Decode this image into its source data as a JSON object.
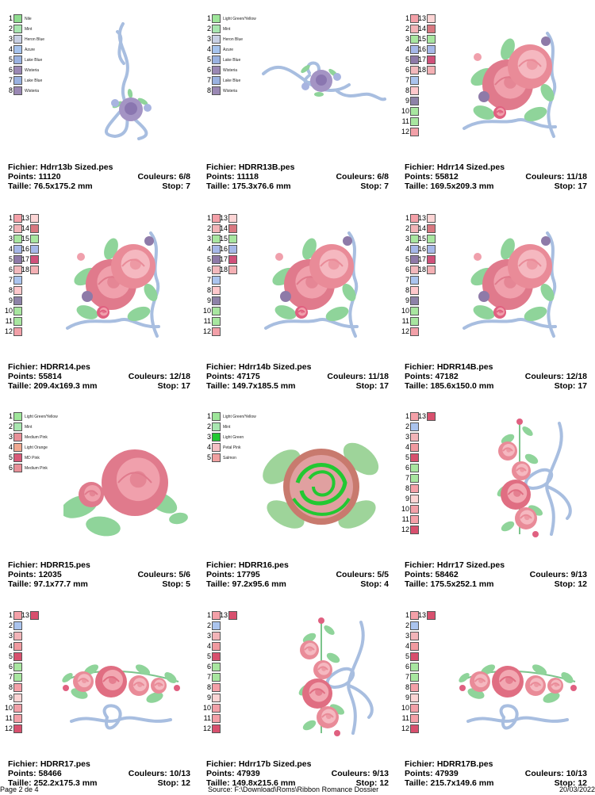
{
  "cells": [
    {
      "fichier": "Fichier: Hdrr13b Sized.pes",
      "points": "Points: 11120",
      "couleurs": "Couleurs: 6/8",
      "taille": "Taille: 76.5x175.2 mm",
      "stop": "Stop: 7",
      "swatches": [
        {
          "n": "1",
          "color": "#8fdc8f",
          "label": "Nile"
        },
        {
          "n": "2",
          "color": "#a8e6b0",
          "label": "Mint"
        },
        {
          "n": "3",
          "color": "#c8d0e4",
          "label": "Heron Blue"
        },
        {
          "n": "4",
          "color": "#a6c4ee",
          "label": "Azure"
        },
        {
          "n": "5",
          "color": "#9ab2e0",
          "label": "Lake Blue"
        },
        {
          "n": "6",
          "color": "#9a88b4",
          "label": "Wisteria"
        },
        {
          "n": "7",
          "color": "#9ab2e0",
          "label": "Lake Blue"
        },
        {
          "n": "8",
          "color": "#9a88b4",
          "label": "Wisteria"
        }
      ],
      "art": "bouquet-vertical"
    },
    {
      "fichier": "Fichier: HDRR13B.pes",
      "points": "Points: 11118",
      "couleurs": "Couleurs: 6/8",
      "taille": "Taille: 175.3x76.6 mm",
      "stop": "Stop: 7",
      "swatches": [
        {
          "n": "1",
          "color": "#9ee69a",
          "label": "Light Green/Yellow"
        },
        {
          "n": "2",
          "color": "#a8e6b0",
          "label": "Mint"
        },
        {
          "n": "3",
          "color": "#c8d0e4",
          "label": "Heron Blue"
        },
        {
          "n": "4",
          "color": "#a6c4ee",
          "label": "Azure"
        },
        {
          "n": "5",
          "color": "#9ab2e0",
          "label": "Lake Blue"
        },
        {
          "n": "6",
          "color": "#9a88b4",
          "label": "Wisteria"
        },
        {
          "n": "7",
          "color": "#9ab2e0",
          "label": "Lake Blue"
        },
        {
          "n": "8",
          "color": "#9a88b4",
          "label": "Wisteria"
        }
      ],
      "art": "bouquet-horizontal"
    },
    {
      "fichier": "Fichier: Hdrr14 Sized.pes",
      "points": "Points: 55812",
      "couleurs": "Couleurs: 11/18",
      "taille": "Taille: 169.5x209.3 mm",
      "stop": "Stop: 17",
      "swatches": [
        {
          "n": "1",
          "color": "#f4a0a8"
        },
        {
          "n": "2",
          "color": "#f2b4b8"
        },
        {
          "n": "3",
          "color": "#a8e6a0"
        },
        {
          "n": "4",
          "color": "#a6b8e8"
        },
        {
          "n": "5",
          "color": "#8e7aa8"
        },
        {
          "n": "6",
          "color": "#f2b8bc"
        },
        {
          "n": "7",
          "color": "#aac4ee"
        },
        {
          "n": "8",
          "color": "#ffc8cc"
        },
        {
          "n": "9",
          "color": "#8e82a8"
        },
        {
          "n": "10",
          "color": "#a8e6a0"
        },
        {
          "n": "11",
          "color": "#a8e6a0"
        },
        {
          "n": "12",
          "color": "#f2a0a8"
        },
        {
          "n": "13",
          "color": "#fcd4d4"
        },
        {
          "n": "14",
          "color": "#d87880"
        },
        {
          "n": "15",
          "color": "#a8e6a0"
        },
        {
          "n": "16",
          "color": "#a6b8e8"
        },
        {
          "n": "17",
          "color": "#d0507a"
        },
        {
          "n": "18",
          "color": "#f4b0b4"
        }
      ],
      "art": "roses-ribbon"
    },
    {
      "fichier": "Fichier: HDRR14.pes",
      "points": "Points: 55814",
      "couleurs": "Couleurs: 12/18",
      "taille": "Taille: 209.4x169.3 mm",
      "stop": "Stop: 17",
      "swatches": [
        {
          "n": "1",
          "color": "#f4a0a8"
        },
        {
          "n": "2",
          "color": "#f2b4b8"
        },
        {
          "n": "3",
          "color": "#a8e6a0"
        },
        {
          "n": "4",
          "color": "#a6b8e8"
        },
        {
          "n": "5",
          "color": "#8e7aa8"
        },
        {
          "n": "6",
          "color": "#f2b8bc"
        },
        {
          "n": "7",
          "color": "#aac4ee"
        },
        {
          "n": "8",
          "color": "#ffc8cc"
        },
        {
          "n": "9",
          "color": "#8e82a8"
        },
        {
          "n": "10",
          "color": "#a8e6a0"
        },
        {
          "n": "11",
          "color": "#a8e6a0"
        },
        {
          "n": "12",
          "color": "#f2a0a8"
        },
        {
          "n": "13",
          "color": "#fcd4d4"
        },
        {
          "n": "14",
          "color": "#d87880"
        },
        {
          "n": "15",
          "color": "#a8e6a0"
        },
        {
          "n": "16",
          "color": "#a6b8e8"
        },
        {
          "n": "17",
          "color": "#d0507a"
        },
        {
          "n": "18",
          "color": "#f4b0b4"
        }
      ],
      "art": "roses-ribbon"
    },
    {
      "fichier": "Fichier: Hdrr14b Sized.pes",
      "points": "Points: 47175",
      "couleurs": "Couleurs: 11/18",
      "taille": "Taille: 149.7x185.5 mm",
      "stop": "Stop: 17",
      "swatches": [
        {
          "n": "1",
          "color": "#f4a0a8"
        },
        {
          "n": "2",
          "color": "#f2b4b8"
        },
        {
          "n": "3",
          "color": "#a8e6a0"
        },
        {
          "n": "4",
          "color": "#a6b8e8"
        },
        {
          "n": "5",
          "color": "#8e7aa8"
        },
        {
          "n": "6",
          "color": "#f2b8bc"
        },
        {
          "n": "7",
          "color": "#aac4ee"
        },
        {
          "n": "8",
          "color": "#ffc8cc"
        },
        {
          "n": "9",
          "color": "#8e82a8"
        },
        {
          "n": "10",
          "color": "#a8e6a0"
        },
        {
          "n": "11",
          "color": "#a8e6a0"
        },
        {
          "n": "12",
          "color": "#f2a0a8"
        },
        {
          "n": "13",
          "color": "#fcd4d4"
        },
        {
          "n": "14",
          "color": "#d87880"
        },
        {
          "n": "15",
          "color": "#a8e6a0"
        },
        {
          "n": "16",
          "color": "#a6b8e8"
        },
        {
          "n": "17",
          "color": "#d0507a"
        },
        {
          "n": "18",
          "color": "#f4b0b4"
        }
      ],
      "art": "roses-ribbon"
    },
    {
      "fichier": "Fichier: HDRR14B.pes",
      "points": "Points: 47182",
      "couleurs": "Couleurs: 12/18",
      "taille": "Taille: 185.6x150.0 mm",
      "stop": "Stop: 17",
      "swatches": [
        {
          "n": "1",
          "color": "#f4a0a8"
        },
        {
          "n": "2",
          "color": "#f2b4b8"
        },
        {
          "n": "3",
          "color": "#a8e6a0"
        },
        {
          "n": "4",
          "color": "#a6b8e8"
        },
        {
          "n": "5",
          "color": "#8e7aa8"
        },
        {
          "n": "6",
          "color": "#f2b8bc"
        },
        {
          "n": "7",
          "color": "#aac4ee"
        },
        {
          "n": "8",
          "color": "#ffc8cc"
        },
        {
          "n": "9",
          "color": "#8e82a8"
        },
        {
          "n": "10",
          "color": "#a8e6a0"
        },
        {
          "n": "11",
          "color": "#a8e6a0"
        },
        {
          "n": "12",
          "color": "#f2a0a8"
        },
        {
          "n": "13",
          "color": "#fcd4d4"
        },
        {
          "n": "14",
          "color": "#d87880"
        },
        {
          "n": "15",
          "color": "#a8e6a0"
        },
        {
          "n": "16",
          "color": "#a6b8e8"
        },
        {
          "n": "17",
          "color": "#d0507a"
        },
        {
          "n": "18",
          "color": "#f4b0b4"
        }
      ],
      "art": "roses-ribbon"
    },
    {
      "fichier": "Fichier: HDRR15.pes",
      "points": "Points: 12035",
      "couleurs": "Couleurs: 5/6",
      "taille": "Taille: 97.1x77.7 mm",
      "stop": "Stop: 5",
      "swatches": [
        {
          "n": "1",
          "color": "#9ee69a",
          "label": "Light Green/Yellow"
        },
        {
          "n": "2",
          "color": "#a8e6b0",
          "label": "Mint"
        },
        {
          "n": "3",
          "color": "#e89098",
          "label": "Medium Pink"
        },
        {
          "n": "4",
          "color": "#f0a890",
          "label": "Light Orange"
        },
        {
          "n": "5",
          "color": "#d85a78",
          "label": "MD Pink"
        },
        {
          "n": "6",
          "color": "#e89098",
          "label": "Medium Pink"
        }
      ],
      "art": "single-rose"
    },
    {
      "fichier": "Fichier: HDRR16.pes",
      "points": "Points: 17795",
      "couleurs": "Couleurs: 5/5",
      "taille": "Taille: 97.2x95.6 mm",
      "stop": "Stop: 4",
      "swatches": [
        {
          "n": "1",
          "color": "#9ee69a",
          "label": "Light Green/Yellow"
        },
        {
          "n": "2",
          "color": "#a8e6b0",
          "label": "Mint"
        },
        {
          "n": "3",
          "color": "#22c832",
          "label": "Light Green"
        },
        {
          "n": "4",
          "color": "#f4c0c4",
          "label": "Petal Pink"
        },
        {
          "n": "5",
          "color": "#f0a0a0",
          "label": "Salmon"
        }
      ],
      "art": "green-rose"
    },
    {
      "fichier": "Fichier: Hdrr17 Sized.pes",
      "points": "Points: 58462",
      "couleurs": "Couleurs: 9/13",
      "taille": "Taille: 175.5x252.1 mm",
      "stop": "Stop: 12",
      "swatches": [
        {
          "n": "1",
          "color": "#f4a0a8"
        },
        {
          "n": "2",
          "color": "#aac4ee"
        },
        {
          "n": "3",
          "color": "#f2b4b8"
        },
        {
          "n": "4",
          "color": "#f09aa0"
        },
        {
          "n": "5",
          "color": "#d8506e"
        },
        {
          "n": "6",
          "color": "#a8e6a0"
        },
        {
          "n": "7",
          "color": "#a8e6a0"
        },
        {
          "n": "8",
          "color": "#f4a0a8"
        },
        {
          "n": "9",
          "color": "#fcd4d4"
        },
        {
          "n": "10",
          "color": "#f2a0a8"
        },
        {
          "n": "11",
          "color": "#f4a0a8"
        },
        {
          "n": "12",
          "color": "#d8506e"
        },
        {
          "n": "13",
          "color": "#d8506e"
        }
      ],
      "art": "roses-vertical"
    },
    {
      "fichier": "Fichier: HDRR17.pes",
      "points": "Points: 58466",
      "couleurs": "Couleurs: 10/13",
      "taille": "Taille: 252.2x175.3 mm",
      "stop": "Stop: 12",
      "swatches": [
        {
          "n": "1",
          "color": "#f4a0a8"
        },
        {
          "n": "2",
          "color": "#aac4ee"
        },
        {
          "n": "3",
          "color": "#f2b4b8"
        },
        {
          "n": "4",
          "color": "#f09aa0"
        },
        {
          "n": "5",
          "color": "#d8506e"
        },
        {
          "n": "6",
          "color": "#a8e6a0"
        },
        {
          "n": "7",
          "color": "#a8e6a0"
        },
        {
          "n": "8",
          "color": "#f4a0a8"
        },
        {
          "n": "9",
          "color": "#fcd4d4"
        },
        {
          "n": "10",
          "color": "#f2a0a8"
        },
        {
          "n": "11",
          "color": "#f4a0a8"
        },
        {
          "n": "12",
          "color": "#d8506e"
        },
        {
          "n": "13",
          "color": "#d8506e"
        }
      ],
      "art": "roses-horizontal"
    },
    {
      "fichier": "Fichier: Hdrr17b Sized.pes",
      "points": "Points: 47939",
      "couleurs": "Couleurs: 9/13",
      "taille": "Taille: 149.8x215.6 mm",
      "stop": "Stop: 12",
      "swatches": [
        {
          "n": "1",
          "color": "#f4a0a8"
        },
        {
          "n": "2",
          "color": "#aac4ee"
        },
        {
          "n": "3",
          "color": "#f2b4b8"
        },
        {
          "n": "4",
          "color": "#f09aa0"
        },
        {
          "n": "5",
          "color": "#d8506e"
        },
        {
          "n": "6",
          "color": "#a8e6a0"
        },
        {
          "n": "7",
          "color": "#a8e6a0"
        },
        {
          "n": "8",
          "color": "#f4a0a8"
        },
        {
          "n": "9",
          "color": "#fcd4d4"
        },
        {
          "n": "10",
          "color": "#f2a0a8"
        },
        {
          "n": "11",
          "color": "#f4a0a8"
        },
        {
          "n": "12",
          "color": "#d8506e"
        },
        {
          "n": "13",
          "color": "#d8506e"
        }
      ],
      "art": "roses-vertical"
    },
    {
      "fichier": "Fichier: HDRR17B.pes",
      "points": "Points: 47939",
      "couleurs": "Couleurs: 10/13",
      "taille": "Taille: 215.7x149.6 mm",
      "stop": "Stop: 12",
      "swatches": [
        {
          "n": "1",
          "color": "#f4a0a8"
        },
        {
          "n": "2",
          "color": "#aac4ee"
        },
        {
          "n": "3",
          "color": "#f2b4b8"
        },
        {
          "n": "4",
          "color": "#f09aa0"
        },
        {
          "n": "5",
          "color": "#d8506e"
        },
        {
          "n": "6",
          "color": "#a8e6a0"
        },
        {
          "n": "7",
          "color": "#a8e6a0"
        },
        {
          "n": "8",
          "color": "#f4a0a8"
        },
        {
          "n": "9",
          "color": "#fcd4d4"
        },
        {
          "n": "10",
          "color": "#f2a0a8"
        },
        {
          "n": "11",
          "color": "#f4a0a8"
        },
        {
          "n": "12",
          "color": "#d8506e"
        },
        {
          "n": "13",
          "color": "#d8506e"
        }
      ],
      "art": "roses-horizontal"
    }
  ],
  "footer": {
    "page": "Page 2 de 4",
    "source": "Source: F:\\Download\\Roms\\Ribbon Romance Dossier",
    "date": "20/03/2022"
  }
}
